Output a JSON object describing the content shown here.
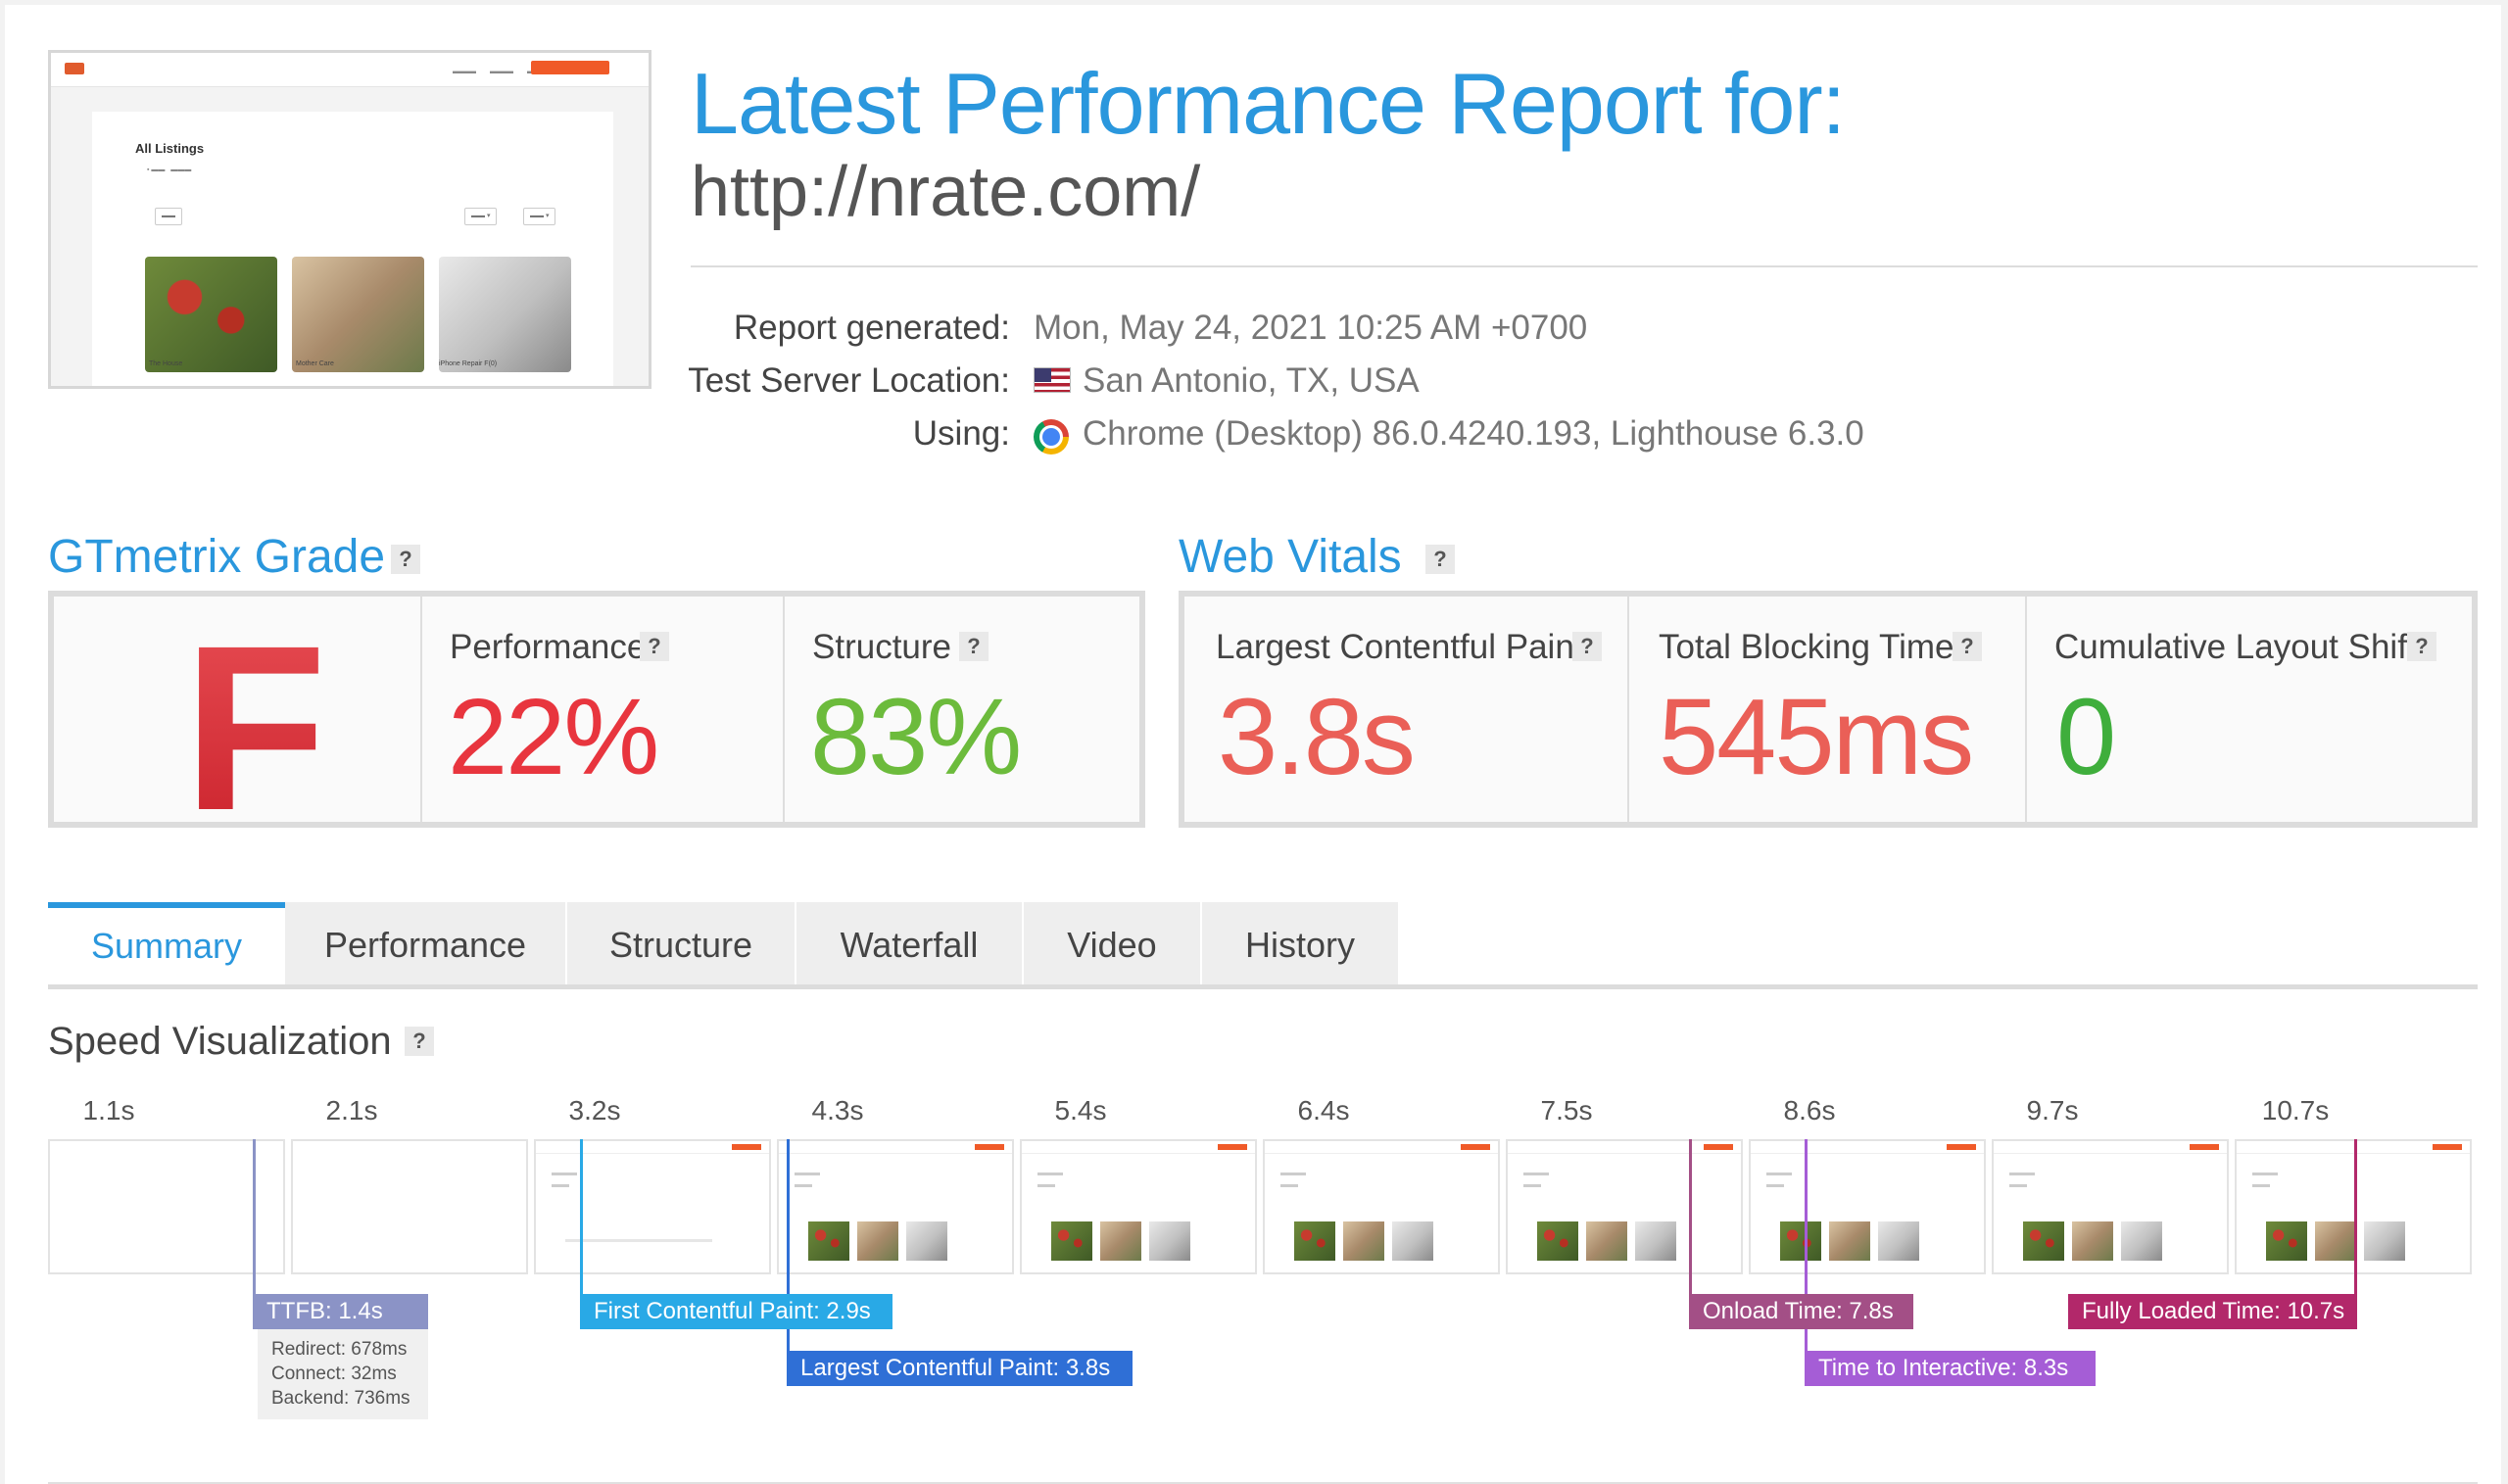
{
  "header": {
    "title": "Latest Performance Report for:",
    "url": "http://nrate.com/",
    "info": [
      {
        "label": "Report generated:",
        "value": "Mon, May 24, 2021 10:25 AM +0700"
      },
      {
        "label": "Test Server Location:",
        "value": "San Antonio, TX, USA",
        "icon": "us-flag-icon"
      },
      {
        "label": "Using:",
        "value": "Chrome (Desktop) 86.0.4240.193, Lighthouse 6.3.0",
        "icon": "chrome-icon"
      }
    ]
  },
  "thumbnail": {
    "heading": "All Listings",
    "captions": [
      "The House",
      "Mother Care",
      "iPhone Repair F(0)"
    ]
  },
  "gtmetrix": {
    "heading": "GTmetrix Grade",
    "help": "?",
    "grade": "F",
    "performance": {
      "label": "Performance",
      "value": "22%",
      "color": "#e8353e"
    },
    "structure": {
      "label": "Structure",
      "value": "83%",
      "color": "#6cbb3c"
    }
  },
  "web_vitals": {
    "heading": "Web Vitals",
    "help": "?",
    "lcp": {
      "label": "Largest Contentful Paint",
      "value": "3.8s",
      "color": "#ea5f57"
    },
    "tbt": {
      "label": "Total Blocking Time",
      "value": "545ms",
      "color": "#ea5f57"
    },
    "cls": {
      "label": "Cumulative Layout Shift",
      "value": "0",
      "color": "#3fae3c"
    }
  },
  "tabs": [
    "Summary",
    "Performance",
    "Structure",
    "Waterfall",
    "Video",
    "History"
  ],
  "active_tab": "Summary",
  "speed": {
    "heading": "Speed Visualization",
    "help": "?",
    "ticks": [
      "1.1s",
      "2.1s",
      "3.2s",
      "4.3s",
      "5.4s",
      "6.4s",
      "7.5s",
      "8.6s",
      "9.7s",
      "10.7s"
    ],
    "markers": {
      "ttfb": {
        "label": "TTFB: 1.4s",
        "color": "#8b93c6"
      },
      "fcp": {
        "label": "First Contentful Paint: 2.9s",
        "color": "#29a9e6"
      },
      "lcp": {
        "label": "Largest Contentful Paint: 3.8s",
        "color": "#2f6fd6"
      },
      "onload": {
        "label": "Onload Time: 7.8s",
        "color": "#a34f86"
      },
      "tti": {
        "label": "Time to Interactive: 8.3s",
        "color": "#a55dd6"
      },
      "fully": {
        "label": "Fully Loaded Time: 10.7s",
        "color": "#b2286a"
      }
    },
    "ttfb_details": [
      "Redirect: 678ms",
      "Connect: 32ms",
      "Backend: 736ms"
    ]
  }
}
